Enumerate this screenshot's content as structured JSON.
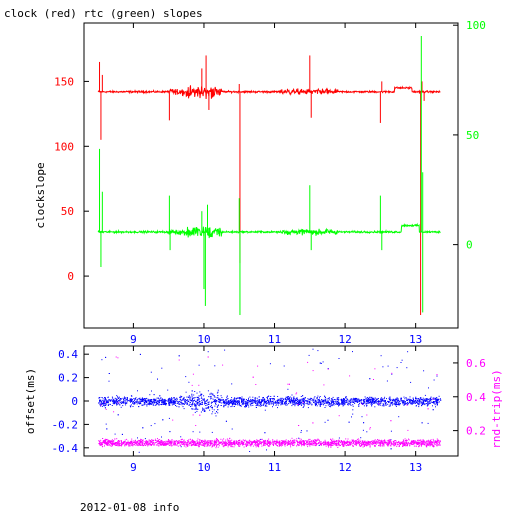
{
  "title": "clock (red) rtc (green) slopes",
  "footer": "2012-01-08 info",
  "colors": {
    "axis": "#000000",
    "clock": "#ff0000",
    "rtc": "#00ff00",
    "offset": "#0000ff",
    "rtt": "#ff00ff",
    "background": "#ffffff"
  },
  "chart_data": [
    {
      "type": "line",
      "title": "clock (red) rtc (green) slopes",
      "xlabel": "",
      "ylabel": "clockslope",
      "y2label": "",
      "xlim": [
        8.3,
        13.6
      ],
      "ylim": [
        -40,
        195
      ],
      "y2lim": [
        -38,
        101
      ],
      "xticks": [
        9,
        10,
        11,
        12,
        13
      ],
      "yticks": [
        0,
        50,
        100,
        150
      ],
      "y2ticks": [
        0,
        50,
        100
      ],
      "grid": false,
      "series": [
        {
          "name": "clock",
          "axis": "left",
          "color": "#ff0000",
          "baseline": 142,
          "spikes": [
            {
              "x": 8.52,
              "y": 165
            },
            {
              "x": 8.54,
              "y": 105
            },
            {
              "x": 8.56,
              "y": 155
            },
            {
              "x": 9.51,
              "y": 120
            },
            {
              "x": 9.97,
              "y": 160
            },
            {
              "x": 10.03,
              "y": 170
            },
            {
              "x": 10.07,
              "y": 128
            },
            {
              "x": 10.5,
              "y": 148
            },
            {
              "x": 10.51,
              "y": 10
            },
            {
              "x": 11.5,
              "y": 170
            },
            {
              "x": 11.52,
              "y": 122
            },
            {
              "x": 12.5,
              "y": 118
            },
            {
              "x": 12.52,
              "y": 150
            },
            {
              "x": 13.07,
              "y": -30
            },
            {
              "x": 13.09,
              "y": 150
            },
            {
              "x": 13.12,
              "y": 135
            }
          ]
        },
        {
          "name": "rtc",
          "axis": "left",
          "color": "#00ff00",
          "baseline": 34,
          "spikes": [
            {
              "x": 8.52,
              "y": 98
            },
            {
              "x": 8.54,
              "y": 7
            },
            {
              "x": 8.56,
              "y": 65
            },
            {
              "x": 9.51,
              "y": 62
            },
            {
              "x": 9.52,
              "y": 20
            },
            {
              "x": 9.97,
              "y": 50
            },
            {
              "x": 10.0,
              "y": -10
            },
            {
              "x": 10.02,
              "y": -23
            },
            {
              "x": 10.05,
              "y": 55
            },
            {
              "x": 10.51,
              "y": -30
            },
            {
              "x": 10.5,
              "y": 60
            },
            {
              "x": 11.5,
              "y": 70
            },
            {
              "x": 11.52,
              "y": 20
            },
            {
              "x": 12.5,
              "y": 62
            },
            {
              "x": 12.52,
              "y": 20
            },
            {
              "x": 13.08,
              "y": 185
            },
            {
              "x": 13.1,
              "y": -28
            },
            {
              "x": 13.1,
              "y": 80
            }
          ]
        }
      ]
    },
    {
      "type": "scatter",
      "title": "",
      "xlabel": "",
      "ylabel": "offset(ms)",
      "y2label": "rnd-trip(ms)",
      "xlim": [
        8.3,
        13.6
      ],
      "ylim": [
        -0.47,
        0.47
      ],
      "y2lim": [
        0.05,
        0.7
      ],
      "xticks": [
        9,
        10,
        11,
        12,
        13
      ],
      "yticks": [
        -0.4,
        -0.2,
        0,
        0.2,
        0.4
      ],
      "y2ticks": [
        0.2,
        0.4,
        0.6
      ],
      "grid": false,
      "series": [
        {
          "name": "offset",
          "axis": "left",
          "color": "#0000ff",
          "baseline": 0,
          "spread": 0.06,
          "x_range": [
            8.5,
            13.35
          ]
        },
        {
          "name": "rnd-trip",
          "axis": "right",
          "color": "#ff00ff",
          "baseline": 0.13,
          "spread": 0.03,
          "x_range": [
            8.5,
            13.35
          ]
        }
      ]
    }
  ]
}
